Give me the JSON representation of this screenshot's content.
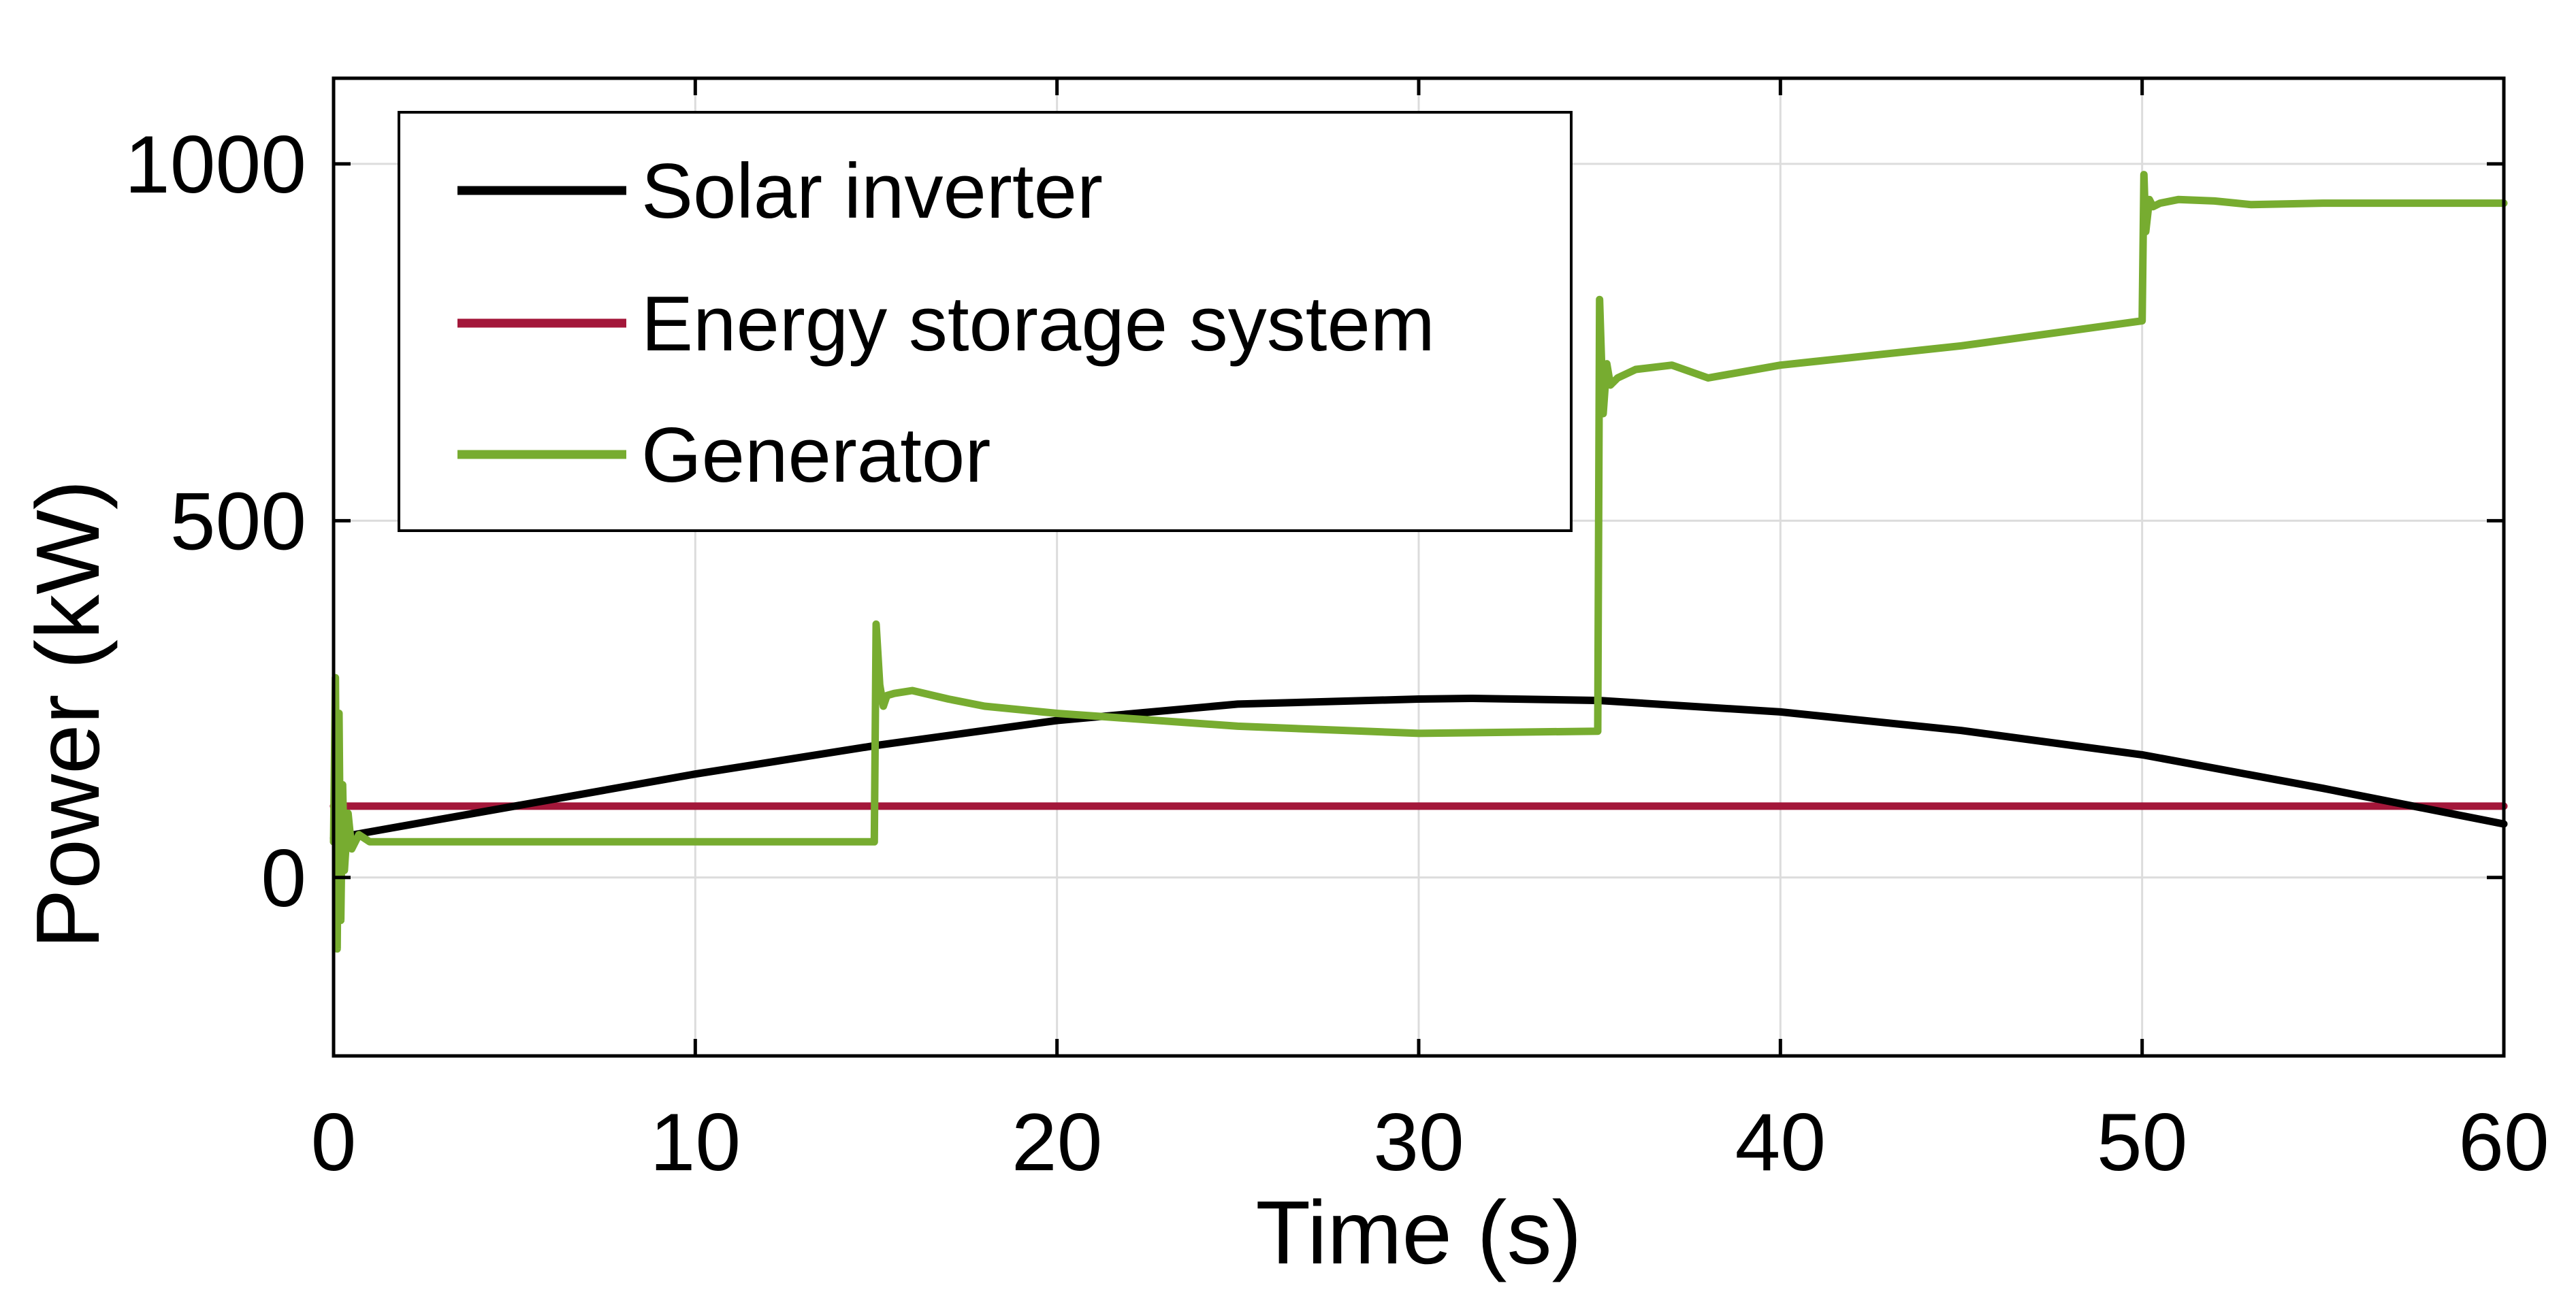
{
  "chart_data": {
    "type": "line",
    "title": "",
    "xlabel": "Time (s)",
    "ylabel": "Power (kW)",
    "xlim": [
      0,
      60
    ],
    "ylim": [
      -250,
      1120
    ],
    "xticks": [
      0,
      10,
      20,
      30,
      40,
      50,
      60
    ],
    "yticks": [
      0,
      500,
      1000
    ],
    "grid": true,
    "legend_position": "top-left",
    "series": [
      {
        "name": "Solar inverter",
        "color": "#000000",
        "x": [
          0,
          5,
          10,
          15,
          20,
          25,
          30,
          31.5,
          35,
          40,
          45,
          50,
          55,
          60
        ],
        "y": [
          55,
          100,
          145,
          185,
          220,
          243,
          250,
          251,
          248,
          232,
          206,
          172,
          125,
          75
        ]
      },
      {
        "name": "Energy storage system",
        "color": "#A3173A",
        "x": [
          0,
          60
        ],
        "y": [
          100,
          100
        ]
      },
      {
        "name": "Generator",
        "color": "#77AC30",
        "x": [
          0,
          0.05,
          0.1,
          0.15,
          0.2,
          0.25,
          0.3,
          0.4,
          0.5,
          0.7,
          1,
          5,
          10,
          14.95,
          15.0,
          15.1,
          15.2,
          15.3,
          15.5,
          16,
          17,
          18,
          20,
          25,
          30,
          34.95,
          35.0,
          35.1,
          35.2,
          35.3,
          35.5,
          36,
          37,
          38,
          40,
          45,
          50,
          50.05,
          50.1,
          50.2,
          50.3,
          50.5,
          51,
          52,
          53,
          55,
          60
        ],
        "y": [
          50,
          280,
          -100,
          230,
          -60,
          130,
          10,
          90,
          40,
          60,
          50,
          50,
          50,
          50,
          355,
          270,
          240,
          255,
          258,
          262,
          250,
          240,
          230,
          212,
          202,
          205,
          810,
          650,
          720,
          690,
          700,
          712,
          718,
          700,
          718,
          745,
          780,
          985,
          905,
          950,
          940,
          945,
          950,
          948,
          943,
          945,
          945
        ]
      }
    ]
  }
}
